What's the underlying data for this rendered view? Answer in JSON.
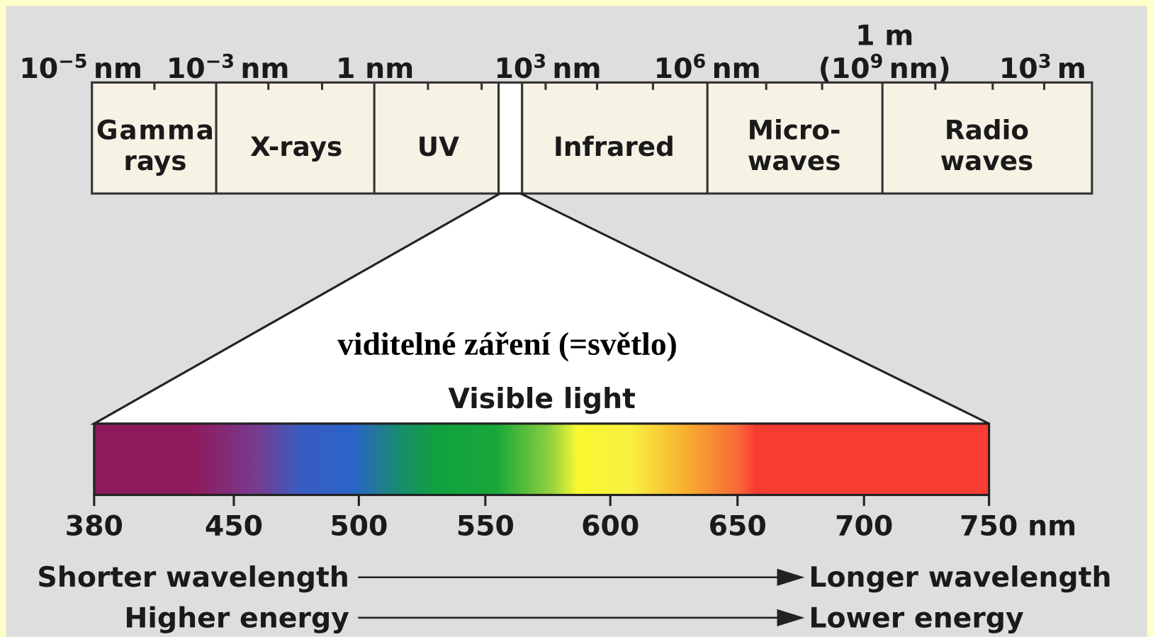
{
  "scale_labels": [
    {
      "base": "10",
      "exp": "−5",
      "unit": "nm"
    },
    {
      "base": "10",
      "exp": "−3",
      "unit": "nm"
    },
    {
      "text": "1 nm"
    },
    {
      "base": "10",
      "exp": "3",
      "unit": "nm"
    },
    {
      "base": "10",
      "exp": "6",
      "unit": "nm"
    },
    {
      "line1": "1 m",
      "base": "(10",
      "exp": "9",
      "unit": "nm)"
    },
    {
      "base": "10",
      "exp": "3",
      "unit": "m"
    }
  ],
  "bands": [
    {
      "lines": [
        "Gamma",
        "rays"
      ]
    },
    {
      "lines": [
        "X-rays"
      ]
    },
    {
      "lines": [
        "UV"
      ]
    },
    {
      "lines": [
        "Infrared"
      ]
    },
    {
      "lines": [
        "Micro-",
        "waves"
      ]
    },
    {
      "lines": [
        "Radio",
        "waves"
      ]
    }
  ],
  "visible_title": "viditelné  záření (=světlo)",
  "visible_subtitle": "Visible light",
  "spectrum_ticks": [
    "380",
    "450",
    "500",
    "550",
    "600",
    "650",
    "700",
    "750 nm"
  ],
  "arrows": [
    {
      "left": "Shorter wavelength",
      "right": "Longer wavelength"
    },
    {
      "left": "Higher energy",
      "right": "Lower energy"
    }
  ]
}
